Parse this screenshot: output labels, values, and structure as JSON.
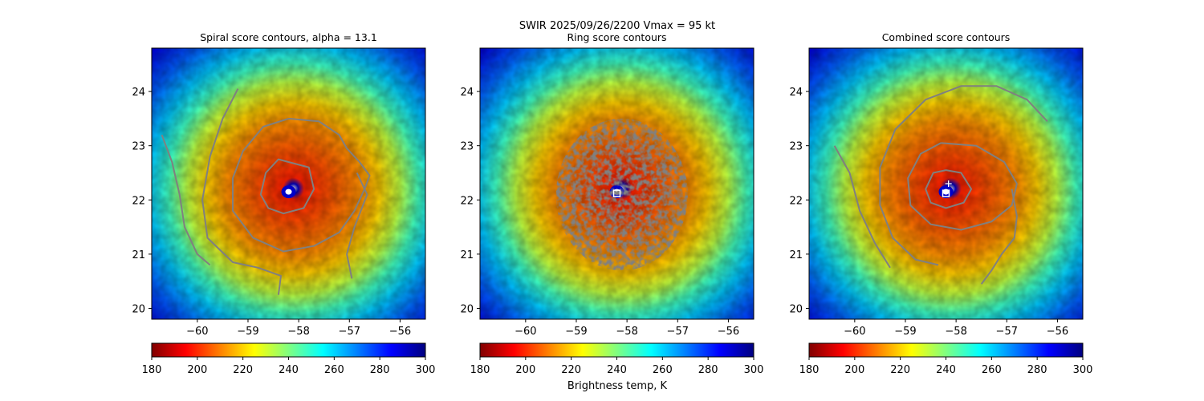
{
  "suptitle": "SWIR  2025/09/26/2200    Vmax = 95 kt",
  "colorbar_label": "Brightness temp, K",
  "colormap": {
    "name": "jet_r",
    "stops": [
      "#800000",
      "#ff0000",
      "#ff8000",
      "#ffff00",
      "#80ff80",
      "#00ffff",
      "#0080ff",
      "#0000ff",
      "#000080"
    ]
  },
  "chart_data": [
    {
      "type": "heatmap",
      "title": "Spiral score contours, alpha = 13.1",
      "xlim": [
        -60.9,
        -55.5
      ],
      "ylim": [
        19.8,
        24.8
      ],
      "xticks": [
        -60,
        -59,
        -58,
        -57,
        -56
      ],
      "xtick_labels": [
        "−60",
        "−59",
        "−58",
        "−57",
        "−56"
      ],
      "yticks": [
        20,
        21,
        22,
        23,
        24
      ],
      "ytick_labels": [
        "20",
        "21",
        "22",
        "23",
        "24"
      ],
      "colorbar": {
        "range": [
          180,
          300
        ],
        "ticks": [
          180,
          200,
          220,
          240,
          260,
          280,
          300
        ],
        "tick_labels": [
          "180",
          "200",
          "220",
          "240",
          "260",
          "280",
          "300"
        ]
      },
      "eye_center": [
        -58.2,
        22.15
      ],
      "contour_color": "#808080",
      "contours": [
        [
          [
            -58.2,
            22.7
          ],
          [
            -57.8,
            22.6
          ],
          [
            -57.7,
            22.2
          ],
          [
            -57.9,
            21.85
          ],
          [
            -58.3,
            21.75
          ],
          [
            -58.6,
            21.85
          ],
          [
            -58.75,
            22.1
          ],
          [
            -58.65,
            22.5
          ],
          [
            -58.4,
            22.75
          ],
          [
            -58.2,
            22.7
          ]
        ],
        [
          [
            -58.2,
            23.5
          ],
          [
            -57.6,
            23.45
          ],
          [
            -57.2,
            23.2
          ],
          [
            -57.05,
            22.95
          ],
          [
            -56.8,
            22.7
          ],
          [
            -56.6,
            22.45
          ],
          [
            -56.7,
            22.2
          ],
          [
            -56.9,
            21.8
          ],
          [
            -57.2,
            21.4
          ],
          [
            -57.7,
            21.15
          ],
          [
            -58.3,
            21.05
          ],
          [
            -58.9,
            21.3
          ],
          [
            -59.3,
            21.8
          ],
          [
            -59.3,
            22.4
          ],
          [
            -59.1,
            22.9
          ],
          [
            -58.7,
            23.35
          ],
          [
            -58.2,
            23.5
          ]
        ],
        [
          [
            -59.2,
            24.05
          ],
          [
            -59.5,
            23.5
          ],
          [
            -59.75,
            22.8
          ],
          [
            -59.9,
            22.0
          ],
          [
            -59.8,
            21.3
          ],
          [
            -59.3,
            20.85
          ],
          [
            -58.8,
            20.75
          ],
          [
            -58.35,
            20.6
          ],
          [
            -58.4,
            20.25
          ]
        ],
        [
          [
            -60.7,
            23.2
          ],
          [
            -60.5,
            22.7
          ],
          [
            -60.35,
            22.1
          ],
          [
            -60.25,
            21.5
          ],
          [
            -60.0,
            21.0
          ],
          [
            -59.75,
            20.8
          ]
        ],
        [
          [
            -56.85,
            22.5
          ],
          [
            -56.65,
            22.1
          ],
          [
            -56.9,
            21.5
          ],
          [
            -57.05,
            21.0
          ],
          [
            -56.95,
            20.55
          ]
        ]
      ]
    },
    {
      "type": "heatmap",
      "title": "Ring score contours",
      "xlim": [
        -60.9,
        -55.5
      ],
      "ylim": [
        19.8,
        24.8
      ],
      "xticks": [
        -60,
        -59,
        -58,
        -57,
        -56
      ],
      "xtick_labels": [
        "−60",
        "−59",
        "−58",
        "−57",
        "−56"
      ],
      "yticks": [
        20,
        21,
        22,
        23,
        24
      ],
      "ytick_labels": [
        "20",
        "21",
        "22",
        "23",
        "24"
      ],
      "colorbar": {
        "range": [
          180,
          300
        ],
        "ticks": [
          180,
          200,
          220,
          240,
          260,
          280,
          300
        ],
        "tick_labels": [
          "180",
          "200",
          "220",
          "240",
          "260",
          "280",
          "300"
        ]
      },
      "eye_center": [
        -58.2,
        22.15
      ],
      "ring_region": {
        "center": [
          -58.1,
          22.1
        ],
        "radius_x": 1.3,
        "radius_y": 1.4
      },
      "marker": {
        "shape": "square",
        "position": [
          -58.2,
          22.12
        ],
        "color": "#ffffff"
      },
      "contour_color": "#808080",
      "contours": []
    },
    {
      "type": "heatmap",
      "title": "Combined score contours",
      "xlim": [
        -60.9,
        -55.5
      ],
      "ylim": [
        19.8,
        24.8
      ],
      "xticks": [
        -60,
        -59,
        -58,
        -57,
        -56
      ],
      "xtick_labels": [
        "−60",
        "−59",
        "−58",
        "−57",
        "−56"
      ],
      "yticks": [
        20,
        21,
        22,
        23,
        24
      ],
      "ytick_labels": [
        "20",
        "21",
        "22",
        "23",
        "24"
      ],
      "colorbar": {
        "range": [
          180,
          300
        ],
        "ticks": [
          180,
          200,
          220,
          240,
          260,
          280,
          300
        ],
        "tick_labels": [
          "180",
          "200",
          "220",
          "240",
          "260",
          "280",
          "300"
        ]
      },
      "eye_center": [
        -58.2,
        22.15
      ],
      "marker": {
        "shape": "square",
        "position": [
          -58.2,
          22.12
        ],
        "color": "#ffffff"
      },
      "plus_marker": {
        "position": [
          -58.15,
          22.3
        ],
        "color": "#ffffff"
      },
      "contour_color": "#808080",
      "contours": [
        [
          [
            -58.2,
            22.55
          ],
          [
            -57.9,
            22.5
          ],
          [
            -57.7,
            22.2
          ],
          [
            -57.85,
            21.95
          ],
          [
            -58.2,
            21.85
          ],
          [
            -58.5,
            21.95
          ],
          [
            -58.6,
            22.2
          ],
          [
            -58.45,
            22.5
          ],
          [
            -58.2,
            22.55
          ]
        ],
        [
          [
            -58.3,
            23.05
          ],
          [
            -57.6,
            23.0
          ],
          [
            -57.05,
            22.7
          ],
          [
            -56.8,
            22.3
          ],
          [
            -56.9,
            21.9
          ],
          [
            -57.3,
            21.6
          ],
          [
            -57.9,
            21.45
          ],
          [
            -58.5,
            21.55
          ],
          [
            -58.9,
            21.9
          ],
          [
            -58.95,
            22.4
          ],
          [
            -58.7,
            22.85
          ],
          [
            -58.3,
            23.05
          ]
        ],
        [
          [
            -56.2,
            23.45
          ],
          [
            -56.6,
            23.85
          ],
          [
            -57.2,
            24.1
          ],
          [
            -57.9,
            24.1
          ],
          [
            -58.6,
            23.85
          ],
          [
            -59.2,
            23.3
          ],
          [
            -59.5,
            22.6
          ],
          [
            -59.5,
            21.9
          ],
          [
            -59.25,
            21.3
          ],
          [
            -58.8,
            20.9
          ],
          [
            -58.35,
            20.8
          ]
        ],
        [
          [
            -60.4,
            23.0
          ],
          [
            -60.1,
            22.5
          ],
          [
            -59.9,
            21.8
          ],
          [
            -59.6,
            21.2
          ],
          [
            -59.3,
            20.75
          ]
        ],
        [
          [
            -56.9,
            22.2
          ],
          [
            -56.8,
            21.7
          ],
          [
            -56.85,
            21.3
          ],
          [
            -57.1,
            21.0
          ],
          [
            -57.3,
            20.7
          ],
          [
            -57.5,
            20.45
          ]
        ]
      ]
    }
  ]
}
